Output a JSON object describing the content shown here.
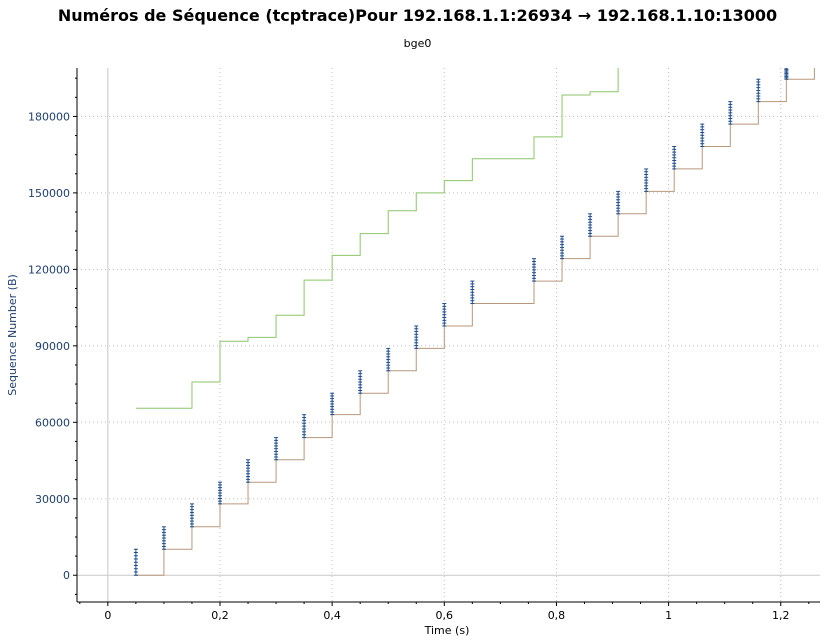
{
  "chart_data": {
    "type": "line",
    "title": "Numéros de Séquence (tcptrace)Pour 192.168.1.1:26934 → 192.168.1.10:13000",
    "subtitle": "bge0",
    "xlabel": "Time (s)",
    "ylabel": "Sequence Number (B)",
    "xlim": [
      -0.055,
      1.27
    ],
    "ylim": [
      -10500,
      199000
    ],
    "grid": true,
    "xticks": [
      0,
      0.2,
      0.4,
      0.6,
      0.8,
      1.0,
      1.2
    ],
    "xtick_labels": [
      "0",
      "0,2",
      "0,4",
      "0,6",
      "0,8",
      "1",
      "1,2"
    ],
    "yticks": [
      0,
      30000,
      60000,
      90000,
      120000,
      150000,
      180000
    ],
    "ytick_labels": [
      "0",
      "30000",
      "60000",
      "90000",
      "120000",
      "150000",
      "180000"
    ],
    "colors": {
      "receive_window": "#8cc66a",
      "acked": "#b8977a",
      "segments": "#1f4e8c",
      "axis_text": "#1f3f6e",
      "grid": "#c0c0c0"
    },
    "series": [
      {
        "role": "receive-window",
        "x": [
          0.05,
          0.1,
          0.15,
          0.2,
          0.25,
          0.3,
          0.35,
          0.4,
          0.45,
          0.5,
          0.55,
          0.6,
          0.65,
          0.76,
          0.81,
          0.86,
          0.91
        ],
        "values": [
          65500,
          65500,
          75800,
          91800,
          93300,
          102000,
          115800,
          125500,
          134000,
          143000,
          150000,
          154800,
          163400,
          172000,
          188400,
          189700,
          199000
        ]
      },
      {
        "role": "acked",
        "x": [
          0.05,
          0.1,
          0.15,
          0.2,
          0.25,
          0.3,
          0.35,
          0.4,
          0.45,
          0.5,
          0.55,
          0.6,
          0.65,
          0.76,
          0.81,
          0.86,
          0.91,
          0.96,
          1.01,
          1.06,
          1.11,
          1.16,
          1.21,
          1.26
        ],
        "values": [
          0,
          10200,
          19000,
          28000,
          36500,
          45300,
          54000,
          63000,
          71400,
          80200,
          89000,
          97800,
          106600,
          115400,
          124200,
          133000,
          141800,
          150600,
          159400,
          168200,
          177000,
          185800,
          194600,
          199000
        ]
      },
      {
        "role": "segments",
        "bursts": [
          {
            "x": 0.05,
            "y0": 0,
            "y1": 10200
          },
          {
            "x": 0.1,
            "y0": 10200,
            "y1": 19000
          },
          {
            "x": 0.15,
            "y0": 19000,
            "y1": 28000
          },
          {
            "x": 0.2,
            "y0": 28000,
            "y1": 36500
          },
          {
            "x": 0.25,
            "y0": 36500,
            "y1": 45300
          },
          {
            "x": 0.3,
            "y0": 45300,
            "y1": 54000
          },
          {
            "x": 0.35,
            "y0": 54000,
            "y1": 63000
          },
          {
            "x": 0.4,
            "y0": 63000,
            "y1": 71400
          },
          {
            "x": 0.45,
            "y0": 71400,
            "y1": 80200
          },
          {
            "x": 0.5,
            "y0": 80200,
            "y1": 89000
          },
          {
            "x": 0.55,
            "y0": 89000,
            "y1": 97800
          },
          {
            "x": 0.6,
            "y0": 97800,
            "y1": 106600
          },
          {
            "x": 0.65,
            "y0": 106600,
            "y1": 115400
          },
          {
            "x": 0.76,
            "y0": 115400,
            "y1": 124200
          },
          {
            "x": 0.81,
            "y0": 124200,
            "y1": 133000
          },
          {
            "x": 0.86,
            "y0": 133000,
            "y1": 141800
          },
          {
            "x": 0.91,
            "y0": 141800,
            "y1": 150600
          },
          {
            "x": 0.96,
            "y0": 150600,
            "y1": 159400
          },
          {
            "x": 1.01,
            "y0": 159400,
            "y1": 168200
          },
          {
            "x": 1.06,
            "y0": 168200,
            "y1": 177000
          },
          {
            "x": 1.11,
            "y0": 177000,
            "y1": 185800
          },
          {
            "x": 1.16,
            "y0": 185800,
            "y1": 194600
          },
          {
            "x": 1.21,
            "y0": 194600,
            "y1": 199000
          }
        ]
      }
    ]
  }
}
